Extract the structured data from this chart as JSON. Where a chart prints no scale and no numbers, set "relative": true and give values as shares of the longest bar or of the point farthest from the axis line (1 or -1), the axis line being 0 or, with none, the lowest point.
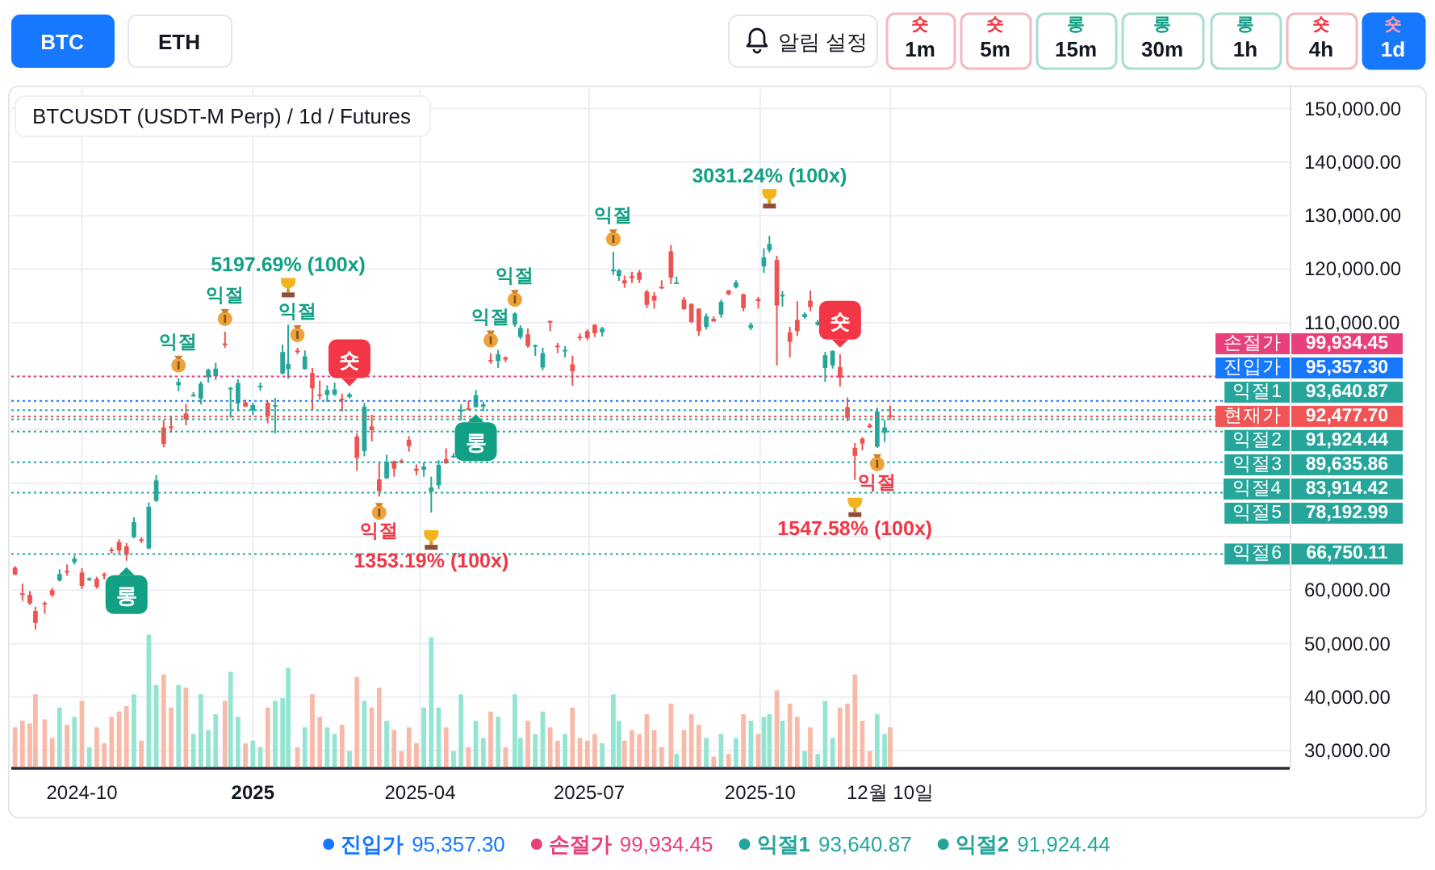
{
  "chart_data": [
    {
      "type": "candlestick",
      "title": "BTCUSDT (USDT-M Perp) / 1d / Futures",
      "x": [
        "2024-08-26",
        "2024-08-30",
        "2024-09-03",
        "2024-09-06",
        "2024-09-11",
        "2024-09-15",
        "2024-09-19",
        "2024-09-23",
        "2024-09-27",
        "2024-10-01",
        "2024-10-05",
        "2024-10-09",
        "2024-10-13",
        "2024-10-17",
        "2024-10-21",
        "2024-10-25",
        "2024-10-29",
        "2024-11-02",
        "2024-11-06",
        "2024-11-10",
        "2024-11-14",
        "2024-11-18",
        "2024-11-22",
        "2024-11-26",
        "2024-11-30",
        "2024-12-04",
        "2024-12-08",
        "2024-12-12",
        "2024-12-17",
        "2024-12-20",
        "2024-12-24",
        "2024-12-28",
        "2025-01-01",
        "2025-01-05",
        "2025-01-09",
        "2025-01-13",
        "2025-01-17",
        "2025-01-20",
        "2025-01-25",
        "2025-01-29",
        "2025-02-02",
        "2025-02-06",
        "2025-02-10",
        "2025-02-14",
        "2025-02-18",
        "2025-02-22",
        "2025-02-26",
        "2025-03-02",
        "2025-03-06",
        "2025-03-10",
        "2025-03-14",
        "2025-03-18",
        "2025-03-22",
        "2025-03-26",
        "2025-03-30",
        "2025-04-03",
        "2025-04-07",
        "2025-04-11",
        "2025-04-15",
        "2025-04-19",
        "2025-04-23",
        "2025-04-27",
        "2025-05-01",
        "2025-05-05",
        "2025-05-09",
        "2025-05-13",
        "2025-05-17",
        "2025-05-22",
        "2025-05-25",
        "2025-05-29",
        "2025-06-02",
        "2025-06-06",
        "2025-06-10",
        "2025-06-14",
        "2025-06-18",
        "2025-06-22",
        "2025-06-26",
        "2025-06-30",
        "2025-07-04",
        "2025-07-08",
        "2025-07-14",
        "2025-07-17",
        "2025-07-20",
        "2025-07-24",
        "2025-07-28",
        "2025-08-01",
        "2025-08-05",
        "2025-08-09",
        "2025-08-14",
        "2025-08-17",
        "2025-08-21",
        "2025-08-25",
        "2025-08-29",
        "2025-09-02",
        "2025-09-06",
        "2025-09-10",
        "2025-09-14",
        "2025-09-18",
        "2025-09-22",
        "2025-09-26",
        "2025-09-30",
        "2025-10-03",
        "2025-10-06",
        "2025-10-10",
        "2025-10-13",
        "2025-10-17",
        "2025-10-21",
        "2025-10-25",
        "2025-10-28",
        "2025-11-01",
        "2025-11-05",
        "2025-11-09",
        "2025-11-13",
        "2025-11-17",
        "2025-11-21",
        "2025-11-25",
        "2025-11-29",
        "2025-12-03",
        "2025-12-07",
        "2025-12-10"
      ],
      "ohlc": [
        [
          64200,
          64500,
          62800,
          62900
        ],
        [
          59400,
          61200,
          58000,
          59100
        ],
        [
          59100,
          59800,
          57200,
          57500
        ],
        [
          56100,
          56900,
          52600,
          53900
        ],
        [
          57600,
          57900,
          55600,
          57300
        ],
        [
          60000,
          60400,
          58700,
          59100
        ],
        [
          61800,
          63900,
          61600,
          63000
        ],
        [
          63600,
          64800,
          62700,
          63300
        ],
        [
          65200,
          66500,
          64800,
          65900
        ],
        [
          63300,
          64100,
          60200,
          60800
        ],
        [
          62100,
          62400,
          61700,
          62200
        ],
        [
          62100,
          62500,
          60300,
          60600
        ],
        [
          63000,
          63300,
          62000,
          62900
        ],
        [
          67600,
          68000,
          66800,
          67400
        ],
        [
          69000,
          69500,
          66600,
          67400
        ],
        [
          68200,
          68800,
          65500,
          66600
        ],
        [
          69900,
          73600,
          69700,
          72700
        ],
        [
          69500,
          69900,
          68800,
          69300
        ],
        [
          67800,
          76400,
          67600,
          75600
        ],
        [
          76700,
          81500,
          76500,
          80500
        ],
        [
          90400,
          91800,
          86700,
          87300
        ],
        [
          90600,
          92600,
          89400,
          90500
        ],
        [
          98300,
          99600,
          97200,
          98900
        ],
        [
          93000,
          94800,
          90800,
          91900
        ],
        [
          96400,
          97000,
          96200,
          96500
        ],
        [
          95800,
          99000,
          94700,
          98600
        ],
        [
          99800,
          101400,
          98800,
          101200
        ],
        [
          100000,
          102500,
          99300,
          101400
        ],
        [
          106100,
          108300,
          105300,
          106000
        ],
        [
          97500,
          98000,
          92200,
          97800
        ],
        [
          94900,
          99400,
          93400,
          98700
        ],
        [
          95100,
          95600,
          94200,
          94300
        ],
        [
          93600,
          95000,
          92700,
          94600
        ],
        [
          98100,
          98800,
          97300,
          98200
        ],
        [
          95000,
          95300,
          91200,
          92500
        ],
        [
          94500,
          95900,
          89300,
          94600
        ],
        [
          100500,
          105900,
          100300,
          104500
        ],
        [
          101300,
          109600,
          99500,
          102300
        ],
        [
          104800,
          105300,
          104100,
          104700
        ],
        [
          101300,
          104800,
          101200,
          103700
        ],
        [
          100600,
          101500,
          93700,
          97700
        ],
        [
          96600,
          99200,
          95600,
          96500
        ],
        [
          96500,
          98300,
          95200,
          97400
        ],
        [
          96600,
          98800,
          96300,
          97500
        ],
        [
          95800,
          96700,
          93400,
          95600
        ],
        [
          96100,
          96900,
          95800,
          96600
        ],
        [
          88700,
          89300,
          82300,
          84700
        ],
        [
          86000,
          95000,
          85000,
          94300
        ],
        [
          90600,
          92800,
          87800,
          89900
        ],
        [
          80700,
          83900,
          77500,
          78500
        ],
        [
          80900,
          85300,
          80800,
          84000
        ],
        [
          84100,
          84200,
          81200,
          82700
        ],
        [
          84200,
          84500,
          83700,
          83800
        ],
        [
          88100,
          88800,
          85900,
          86900
        ],
        [
          82700,
          83500,
          81500,
          82300
        ],
        [
          82500,
          83900,
          81200,
          83100
        ],
        [
          78400,
          81200,
          74500,
          79200
        ],
        [
          79600,
          84300,
          78900,
          83400
        ],
        [
          84500,
          86500,
          83600,
          83700
        ],
        [
          84900,
          85600,
          84700,
          85100
        ],
        [
          93400,
          94700,
          91700,
          93700
        ],
        [
          94000,
          95400,
          93600,
          93800
        ],
        [
          94200,
          97400,
          94100,
          96400
        ],
        [
          94300,
          95200,
          93500,
          94700
        ],
        [
          103000,
          104300,
          102300,
          102900
        ],
        [
          102800,
          104900,
          101500,
          104100
        ],
        [
          103500,
          103700,
          102600,
          103100
        ],
        [
          109600,
          111900,
          109200,
          111700
        ],
        [
          107300,
          109500,
          106900,
          109000
        ],
        [
          107800,
          108900,
          105300,
          105600
        ],
        [
          105600,
          105900,
          103800,
          105800
        ],
        [
          101600,
          105300,
          101100,
          104300
        ],
        [
          110300,
          110400,
          108400,
          110200
        ],
        [
          105700,
          106200,
          104300,
          105600
        ],
        [
          104600,
          105600,
          103500,
          104900
        ],
        [
          102200,
          103800,
          98200,
          100900
        ],
        [
          107400,
          108000,
          106600,
          107100
        ],
        [
          108400,
          108800,
          106700,
          107100
        ],
        [
          109600,
          109700,
          107300,
          108000
        ],
        [
          108200,
          109200,
          107400,
          108900
        ],
        [
          119800,
          123200,
          118900,
          119900
        ],
        [
          118700,
          120000,
          117800,
          119800
        ],
        [
          117900,
          118800,
          116500,
          117300
        ],
        [
          118700,
          119500,
          117400,
          118300
        ],
        [
          119400,
          119800,
          117400,
          118000
        ],
        [
          115800,
          116100,
          112700,
          113300
        ],
        [
          115000,
          115700,
          112600,
          114100
        ],
        [
          116700,
          117900,
          116300,
          116500
        ],
        [
          123300,
          124500,
          117200,
          118400
        ],
        [
          117400,
          118600,
          117300,
          117500
        ],
        [
          114300,
          114800,
          112400,
          112500
        ],
        [
          113500,
          113600,
          109900,
          110100
        ],
        [
          112600,
          112700,
          107500,
          108400
        ],
        [
          109200,
          111700,
          108700,
          111200
        ],
        [
          110700,
          111200,
          110200,
          110200
        ],
        [
          111500,
          114300,
          110900,
          113900
        ],
        [
          116000,
          116100,
          115100,
          115300
        ],
        [
          116600,
          117900,
          116400,
          117500
        ],
        [
          115300,
          115400,
          112100,
          112700
        ],
        [
          109000,
          110000,
          108600,
          109600
        ],
        [
          114400,
          114800,
          112600,
          114000
        ],
        [
          120500,
          123900,
          119300,
          122200
        ],
        [
          123500,
          126200,
          123100,
          124700
        ],
        [
          121700,
          122500,
          102000,
          113200
        ],
        [
          115000,
          115900,
          113000,
          115200
        ],
        [
          108200,
          109200,
          103500,
          106400
        ],
        [
          110500,
          114000,
          107500,
          108400
        ],
        [
          111000,
          111900,
          110700,
          111600
        ],
        [
          114100,
          116000,
          112100,
          112900
        ],
        [
          109600,
          110500,
          109400,
          110100
        ],
        [
          101500,
          104500,
          98900,
          103900
        ],
        [
          102000,
          104800,
          101400,
          104700
        ],
        [
          101700,
          104100,
          98000,
          99700
        ],
        [
          94200,
          96000,
          91600,
          92200
        ],
        [
          86600,
          87500,
          80600,
          85100
        ],
        [
          88300,
          88600,
          86100,
          87400
        ],
        [
          90900,
          91200,
          90300,
          90400
        ],
        [
          86800,
          94100,
          86600,
          93400
        ],
        [
          89400,
          91800,
          87700,
          90400
        ],
        [
          92700,
          94500,
          91900,
          92500
        ]
      ],
      "xlim": [
        "2024-08-24",
        "2026-07-13"
      ],
      "xticks": [
        {
          "value": "2024-10-01",
          "label": "2024-10"
        },
        {
          "value": "2025-01-01",
          "label": "2025"
        },
        {
          "value": "2025-04-01",
          "label": "2025-04"
        },
        {
          "value": "2025-07-01",
          "label": "2025-07"
        },
        {
          "value": "2025-10-01",
          "label": "2025-10"
        },
        {
          "value": "2025-12-10",
          "label": "12월 10일"
        }
      ],
      "ylim": [
        26700,
        153700
      ],
      "yticks": [
        {
          "value": 30000,
          "label": "30,000.00"
        },
        {
          "value": 40000,
          "label": "40,000.00"
        },
        {
          "value": 50000,
          "label": "50,000.00"
        },
        {
          "value": 60000,
          "label": "60,000.00"
        },
        {
          "value": 70000,
          "label": null
        },
        {
          "value": 80000,
          "label": null
        },
        {
          "value": 90000,
          "label": null
        },
        {
          "value": 100000,
          "label": null
        },
        {
          "value": 110000,
          "label": "110,000.00"
        },
        {
          "value": 120000,
          "label": "120,000.00"
        },
        {
          "value": 130000,
          "label": "130,000.00"
        },
        {
          "value": 140000,
          "label": "140,000.00"
        },
        {
          "value": 150000,
          "label": "150,000.00"
        }
      ],
      "grid": true,
      "legend": "bottom",
      "ref_lines": [
        {
          "axis": "y",
          "value": 95357.3,
          "label": "진입가 95,357.30",
          "color": "#1677ff",
          "line_style": "dotted"
        },
        {
          "axis": "y",
          "value": 99934.45,
          "label": "손절가 99,934.45",
          "color": "#e8407a",
          "line_style": "dotted"
        },
        {
          "axis": "y",
          "value": 93640.87,
          "label": "익절1 93,640.87",
          "color": "#26a69a",
          "line_style": "dotted"
        },
        {
          "axis": "y",
          "value": 91924.44,
          "label": "익절2 91,924.44",
          "color": "#26a69a",
          "line_style": "dotted"
        },
        {
          "axis": "y",
          "value": 89635.86,
          "label": "익절3 89,635.86",
          "color": "#26a69a",
          "line_style": "dotted"
        },
        {
          "axis": "y",
          "value": 83914.42,
          "label": "익절4 83,914.42",
          "color": "#26a69a",
          "line_style": "dotted"
        },
        {
          "axis": "y",
          "value": 78192.99,
          "label": "익절5 78,192.99",
          "color": "#26a69a",
          "line_style": "dotted"
        },
        {
          "axis": "y",
          "value": 66750.11,
          "label": "익절6 66,750.11",
          "color": "#26a69a",
          "line_style": "dotted"
        },
        {
          "axis": "y",
          "value": 92477.7,
          "label": "현재가 92,477.70",
          "color": "#f05454",
          "line_style": "dotted"
        }
      ],
      "annotations": [
        {
          "text": "롱",
          "x": "2024-10-25",
          "y": 65500
        },
        {
          "text": "익절",
          "x": "2024-11-22",
          "y": 99600
        },
        {
          "text": "익절",
          "x": "2024-12-17",
          "y": 108300
        },
        {
          "text": "5197.69% (100x)",
          "x": "2025-01-20",
          "y": 109600
        },
        {
          "text": "익절",
          "x": "2025-01-25",
          "y": 105300
        },
        {
          "text": "숏",
          "x": "2025-02-22",
          "y": 96900
        },
        {
          "text": "익절",
          "x": "2025-03-10",
          "y": 77500
        },
        {
          "text": "1353.19% (100x)",
          "x": "2025-04-07",
          "y": 74500
        },
        {
          "text": "롱",
          "x": "2025-05-01",
          "y": 94100
        },
        {
          "text": "익절",
          "x": "2025-05-09",
          "y": 104300
        },
        {
          "text": "익절",
          "x": "2025-05-22",
          "y": 111900
        },
        {
          "text": "익절",
          "x": "2025-07-14",
          "y": 123200
        },
        {
          "text": "3031.24% (100x)",
          "x": "2025-10-06",
          "y": 126200
        },
        {
          "text": "숏",
          "x": "2025-11-13",
          "y": 104100
        },
        {
          "text": "익절",
          "x": "2025-12-03",
          "y": 86600
        },
        {
          "text": "1547.58% (100x)",
          "x": "2025-11-21",
          "y": 80600
        },
        "BTC",
        "ETH",
        "알림 설정",
        "숏",
        "1m",
        "숏",
        "5m",
        "롱",
        "15m",
        "롱",
        "30m",
        "롱",
        "1h",
        "숏",
        "4h",
        "숏",
        "1d"
      ]
    },
    {
      "type": "bar",
      "relative": true,
      "tick_labels": false,
      "xlim": [
        "2024-08-24",
        "2026-07-13"
      ],
      "x": [
        "2024-08-26",
        "2024-08-30",
        "2024-09-03",
        "2024-09-06",
        "2024-09-11",
        "2024-09-15",
        "2024-09-19",
        "2024-09-23",
        "2024-09-27",
        "2024-10-01",
        "2024-10-05",
        "2024-10-09",
        "2024-10-13",
        "2024-10-17",
        "2024-10-21",
        "2024-10-25",
        "2024-10-29",
        "2024-11-02",
        "2024-11-06",
        "2024-11-10",
        "2024-11-14",
        "2024-11-18",
        "2024-11-22",
        "2024-11-26",
        "2024-11-30",
        "2024-12-04",
        "2024-12-08",
        "2024-12-12",
        "2024-12-17",
        "2024-12-20",
        "2024-12-24",
        "2024-12-28",
        "2025-01-01",
        "2025-01-05",
        "2025-01-09",
        "2025-01-13",
        "2025-01-17",
        "2025-01-20",
        "2025-01-25",
        "2025-01-29",
        "2025-02-02",
        "2025-02-06",
        "2025-02-10",
        "2025-02-14",
        "2025-02-18",
        "2025-02-22",
        "2025-02-26",
        "2025-03-02",
        "2025-03-06",
        "2025-03-10",
        "2025-03-14",
        "2025-03-18",
        "2025-03-22",
        "2025-03-26",
        "2025-03-30",
        "2025-04-03",
        "2025-04-07",
        "2025-04-11",
        "2025-04-15",
        "2025-04-19",
        "2025-04-23",
        "2025-04-27",
        "2025-05-01",
        "2025-05-05",
        "2025-05-09",
        "2025-05-13",
        "2025-05-17",
        "2025-05-22",
        "2025-05-25",
        "2025-05-29",
        "2025-06-02",
        "2025-06-06",
        "2025-06-10",
        "2025-06-14",
        "2025-06-18",
        "2025-06-22",
        "2025-06-26",
        "2025-06-30",
        "2025-07-04",
        "2025-07-08",
        "2025-07-14",
        "2025-07-17",
        "2025-07-20",
        "2025-07-24",
        "2025-07-28",
        "2025-08-01",
        "2025-08-05",
        "2025-08-09",
        "2025-08-14",
        "2025-08-17",
        "2025-08-21",
        "2025-08-25",
        "2025-08-29",
        "2025-09-02",
        "2025-09-06",
        "2025-09-10",
        "2025-09-14",
        "2025-09-18",
        "2025-09-22",
        "2025-09-26",
        "2025-09-30",
        "2025-10-03",
        "2025-10-06",
        "2025-10-10",
        "2025-10-13",
        "2025-10-17",
        "2025-10-21",
        "2025-10-25",
        "2025-10-28",
        "2025-11-01",
        "2025-11-05",
        "2025-11-09",
        "2025-11-13",
        "2025-11-17",
        "2025-11-21",
        "2025-11-25",
        "2025-11-29",
        "2025-12-03",
        "2025-12-07",
        "2025-12-10"
      ],
      "values": [
        0.3,
        0.35,
        0.33,
        0.55,
        0.36,
        0.22,
        0.45,
        0.32,
        0.38,
        0.5,
        0.15,
        0.3,
        0.18,
        0.38,
        0.42,
        0.46,
        0.55,
        0.2,
        1,
        0.62,
        0.7,
        0.45,
        0.62,
        0.6,
        0.25,
        0.55,
        0.28,
        0.4,
        0.5,
        0.72,
        0.38,
        0.18,
        0.2,
        0.15,
        0.45,
        0.5,
        0.52,
        0.75,
        0.15,
        0.3,
        0.55,
        0.38,
        0.3,
        0.25,
        0.32,
        0.12,
        0.68,
        0.5,
        0.45,
        0.6,
        0.35,
        0.28,
        0.12,
        0.3,
        0.18,
        0.45,
        0.98,
        0.45,
        0.3,
        0.12,
        0.55,
        0.15,
        0.35,
        0.22,
        0.42,
        0.38,
        0.15,
        0.55,
        0.22,
        0.35,
        0.25,
        0.42,
        0.3,
        0.2,
        0.25,
        0.45,
        0.22,
        0.2,
        0.25,
        0.18,
        0.55,
        0.35,
        0.2,
        0.28,
        0.25,
        0.4,
        0.28,
        0.15,
        0.48,
        0.1,
        0.28,
        0.4,
        0.32,
        0.22,
        0.08,
        0.25,
        0.1,
        0.22,
        0.4,
        0.35,
        0.25,
        0.38,
        0.4,
        0.58,
        0.35,
        0.48,
        0.38,
        0.12,
        0.3,
        0.1,
        0.5,
        0.22,
        0.45,
        0.48,
        0.7,
        0.35,
        0.12,
        0.4,
        0.25,
        0.3
      ],
      "colors": [
        "#f8b9a8",
        "#f8b9a8",
        "#f8b9a8",
        "#f8b9a8",
        "#f8b9a8",
        "#f8b9a8",
        "#93e4d1",
        "#f8b9a8",
        "#93e4d1",
        "#f8b9a8",
        "#93e4d1",
        "#f8b9a8",
        "#f8b9a8",
        "#f8b9a8",
        "#f8b9a8",
        "#f8b9a8",
        "#93e4d1",
        "#f8b9a8",
        "#93e4d1",
        "#93e4d1",
        "#f8b9a8",
        "#f8b9a8",
        "#93e4d1",
        "#f8b9a8",
        "#93e4d1",
        "#93e4d1",
        "#93e4d1",
        "#93e4d1",
        "#f8b9a8",
        "#93e4d1",
        "#93e4d1",
        "#f8b9a8",
        "#93e4d1",
        "#93e4d1",
        "#f8b9a8",
        "#93e4d1",
        "#93e4d1",
        "#93e4d1",
        "#f8b9a8",
        "#93e4d1",
        "#f8b9a8",
        "#f8b9a8",
        "#93e4d1",
        "#93e4d1",
        "#f8b9a8",
        "#93e4d1",
        "#f8b9a8",
        "#93e4d1",
        "#f8b9a8",
        "#f8b9a8",
        "#93e4d1",
        "#f8b9a8",
        "#f8b9a8",
        "#f8b9a8",
        "#f8b9a8",
        "#93e4d1",
        "#93e4d1",
        "#93e4d1",
        "#f8b9a8",
        "#93e4d1",
        "#93e4d1",
        "#f8b9a8",
        "#93e4d1",
        "#93e4d1",
        "#f8b9a8",
        "#93e4d1",
        "#f8b9a8",
        "#93e4d1",
        "#93e4d1",
        "#f8b9a8",
        "#93e4d1",
        "#93e4d1",
        "#f8b9a8",
        "#f8b9a8",
        "#93e4d1",
        "#f8b9a8",
        "#f8b9a8",
        "#f8b9a8",
        "#f8b9a8",
        "#93e4d1",
        "#93e4d1",
        "#93e4d1",
        "#f8b9a8",
        "#f8b9a8",
        "#f8b9a8",
        "#f8b9a8",
        "#f8b9a8",
        "#f8b9a8",
        "#f8b9a8",
        "#93e4d1",
        "#f8b9a8",
        "#f8b9a8",
        "#f8b9a8",
        "#93e4d1",
        "#f8b9a8",
        "#93e4d1",
        "#f8b9a8",
        "#93e4d1",
        "#f8b9a8",
        "#93e4d1",
        "#f8b9a8",
        "#93e4d1",
        "#93e4d1",
        "#f8b9a8",
        "#93e4d1",
        "#f8b9a8",
        "#f8b9a8",
        "#93e4d1",
        "#f8b9a8",
        "#93e4d1",
        "#93e4d1",
        "#93e4d1",
        "#f8b9a8",
        "#f8b9a8",
        "#f8b9a8",
        "#f8b9a8",
        "#f8b9a8",
        "#93e4d1",
        "#93e4d1",
        "#f8b9a8"
      ]
    }
  ]
}
